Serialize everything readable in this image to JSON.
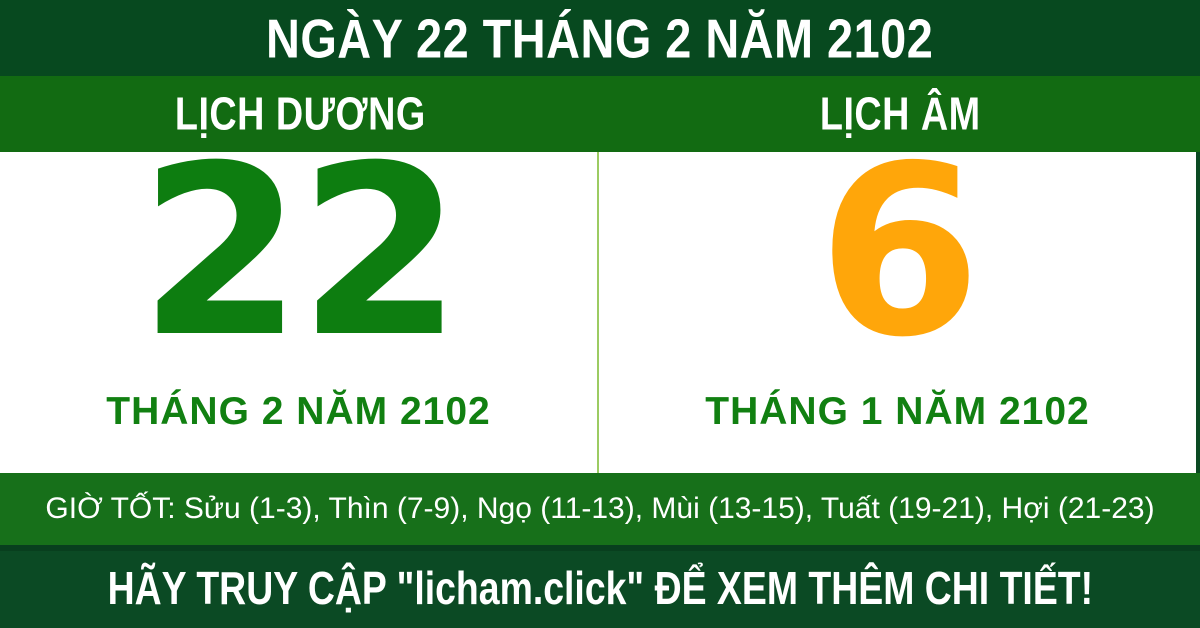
{
  "colors": {
    "dark_green": "#07491f",
    "band_green": "#126b12",
    "hours_green": "#17701a",
    "day_green": "#0d7d10",
    "month_green": "#118011",
    "day_orange": "#ffa60a",
    "divider_light_green": "#9ccb62",
    "white": "#ffffff"
  },
  "header": {
    "title": "NGÀY 22 THÁNG 2 NĂM 2102"
  },
  "columns": {
    "solar": {
      "label": "LỊCH DƯƠNG",
      "day": "22",
      "month_year": "THÁNG 2 NĂM 2102"
    },
    "lunar": {
      "label": "LỊCH ÂM",
      "day": "6",
      "month_year": "THÁNG 1 NĂM 2102"
    }
  },
  "good_hours": {
    "text": "GIỜ TỐT: Sửu (1-3), Thìn (7-9), Ngọ (11-13), Mùi (13-15), Tuất (19-21), Hợi (21-23)",
    "label": "GIỜ TỐT:",
    "items": [
      {
        "name": "Sửu",
        "range": "1-3"
      },
      {
        "name": "Thìn",
        "range": "7-9"
      },
      {
        "name": "Ngọ",
        "range": "11-13"
      },
      {
        "name": "Mùi",
        "range": "13-15"
      },
      {
        "name": "Tuất",
        "range": "19-21"
      },
      {
        "name": "Hợi",
        "range": "21-23"
      }
    ]
  },
  "footer": {
    "text": "HÃY TRUY CẬP \"licham.click\" ĐỂ XEM THÊM CHI TIẾT!"
  }
}
